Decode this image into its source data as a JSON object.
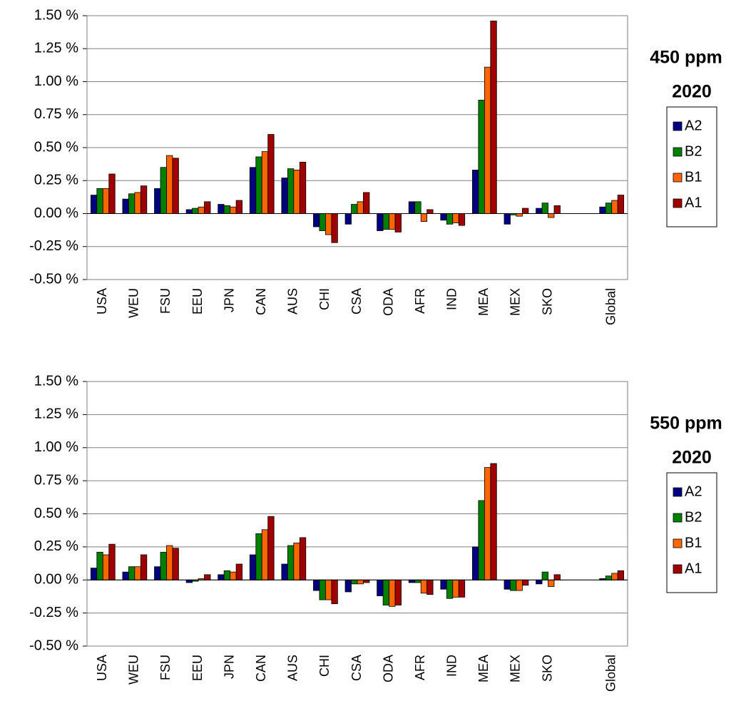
{
  "chart_data": [
    {
      "type": "bar",
      "title": "450 ppm",
      "subtitle": "2020",
      "categories": [
        "USA",
        "WEU",
        "FSU",
        "EEU",
        "JPN",
        "CAN",
        "AUS",
        "CHI",
        "CSA",
        "ODA",
        "AFR",
        "IND",
        "MEA",
        "MEX",
        "SKO",
        null,
        "Global"
      ],
      "series": [
        {
          "name": "A2",
          "color": "#000080",
          "values": [
            0.14,
            0.11,
            0.19,
            0.03,
            0.07,
            0.35,
            0.27,
            -0.1,
            -0.08,
            -0.13,
            0.09,
            -0.05,
            0.33,
            -0.08,
            0.04,
            null,
            0.05
          ]
        },
        {
          "name": "B2",
          "color": "#008000",
          "values": [
            0.19,
            0.15,
            0.35,
            0.04,
            0.06,
            0.43,
            0.34,
            -0.13,
            0.07,
            -0.12,
            0.09,
            -0.08,
            0.86,
            -0.01,
            0.08,
            null,
            0.08
          ]
        },
        {
          "name": "B1",
          "color": "#ff6600",
          "values": [
            0.19,
            0.16,
            0.44,
            0.05,
            0.05,
            0.47,
            0.33,
            -0.16,
            0.09,
            -0.12,
            -0.06,
            -0.07,
            1.11,
            -0.02,
            -0.03,
            null,
            0.1
          ]
        },
        {
          "name": "A1",
          "color": "#a00000",
          "values": [
            0.3,
            0.21,
            0.42,
            0.09,
            0.1,
            0.6,
            0.39,
            -0.22,
            0.16,
            -0.14,
            0.03,
            -0.09,
            1.46,
            0.04,
            0.06,
            null,
            0.14
          ]
        }
      ],
      "ylim": [
        -0.5,
        1.5
      ],
      "yticks": [
        {
          "value": -0.5,
          "label": "-0.50 %"
        },
        {
          "value": -0.25,
          "label": "-0.25 %"
        },
        {
          "value": 0,
          "label": "0.00 %"
        },
        {
          "value": 0.25,
          "label": "0.25 %"
        },
        {
          "value": 0.5,
          "label": "0.50 %"
        },
        {
          "value": 0.75,
          "label": "0.75 %"
        },
        {
          "value": 1,
          "label": "1.00 %"
        },
        {
          "value": 1.25,
          "label": "1.25 %"
        },
        {
          "value": 1.5,
          "label": "1.50 %"
        }
      ],
      "grid": true,
      "legend": "right"
    },
    {
      "type": "bar",
      "title": "550 ppm",
      "subtitle": "2020",
      "categories": [
        "USA",
        "WEU",
        "FSU",
        "EEU",
        "JPN",
        "CAN",
        "AUS",
        "CHI",
        "CSA",
        "ODA",
        "AFR",
        "IND",
        "MEA",
        "MEX",
        "SKO",
        null,
        "Global"
      ],
      "series": [
        {
          "name": "A2",
          "color": "#000080",
          "values": [
            0.09,
            0.06,
            0.1,
            -0.02,
            0.04,
            0.19,
            0.12,
            -0.08,
            -0.09,
            -0.12,
            -0.02,
            -0.07,
            0.25,
            -0.07,
            -0.03,
            null,
            0.01
          ]
        },
        {
          "name": "B2",
          "color": "#008000",
          "values": [
            0.21,
            0.1,
            0.21,
            -0.01,
            0.07,
            0.35,
            0.26,
            -0.15,
            -0.03,
            -0.19,
            -0.02,
            -0.14,
            0.6,
            -0.08,
            0.06,
            null,
            0.03
          ]
        },
        {
          "name": "B1",
          "color": "#ff6600",
          "values": [
            0.19,
            0.1,
            0.26,
            0.01,
            0.06,
            0.38,
            0.28,
            -0.15,
            -0.03,
            -0.2,
            -0.1,
            -0.13,
            0.85,
            -0.08,
            -0.05,
            null,
            0.05
          ]
        },
        {
          "name": "A1",
          "color": "#a00000",
          "values": [
            0.27,
            0.19,
            0.24,
            0.04,
            0.12,
            0.48,
            0.32,
            -0.18,
            -0.02,
            -0.19,
            -0.11,
            -0.13,
            0.88,
            -0.04,
            0.04,
            null,
            0.07
          ]
        }
      ],
      "ylim": [
        -0.5,
        1.5
      ],
      "yticks": [
        {
          "value": -0.5,
          "label": "-0.50 %"
        },
        {
          "value": -0.25,
          "label": "-0.25 %"
        },
        {
          "value": 0,
          "label": "0.00 %"
        },
        {
          "value": 0.25,
          "label": "0.25 %"
        },
        {
          "value": 0.5,
          "label": "0.50 %"
        },
        {
          "value": 0.75,
          "label": "0.75 %"
        },
        {
          "value": 1,
          "label": "1.00 %"
        },
        {
          "value": 1.25,
          "label": "1.25 %"
        },
        {
          "value": 1.5,
          "label": "1.50 %"
        }
      ],
      "grid": true,
      "legend": "right"
    }
  ]
}
